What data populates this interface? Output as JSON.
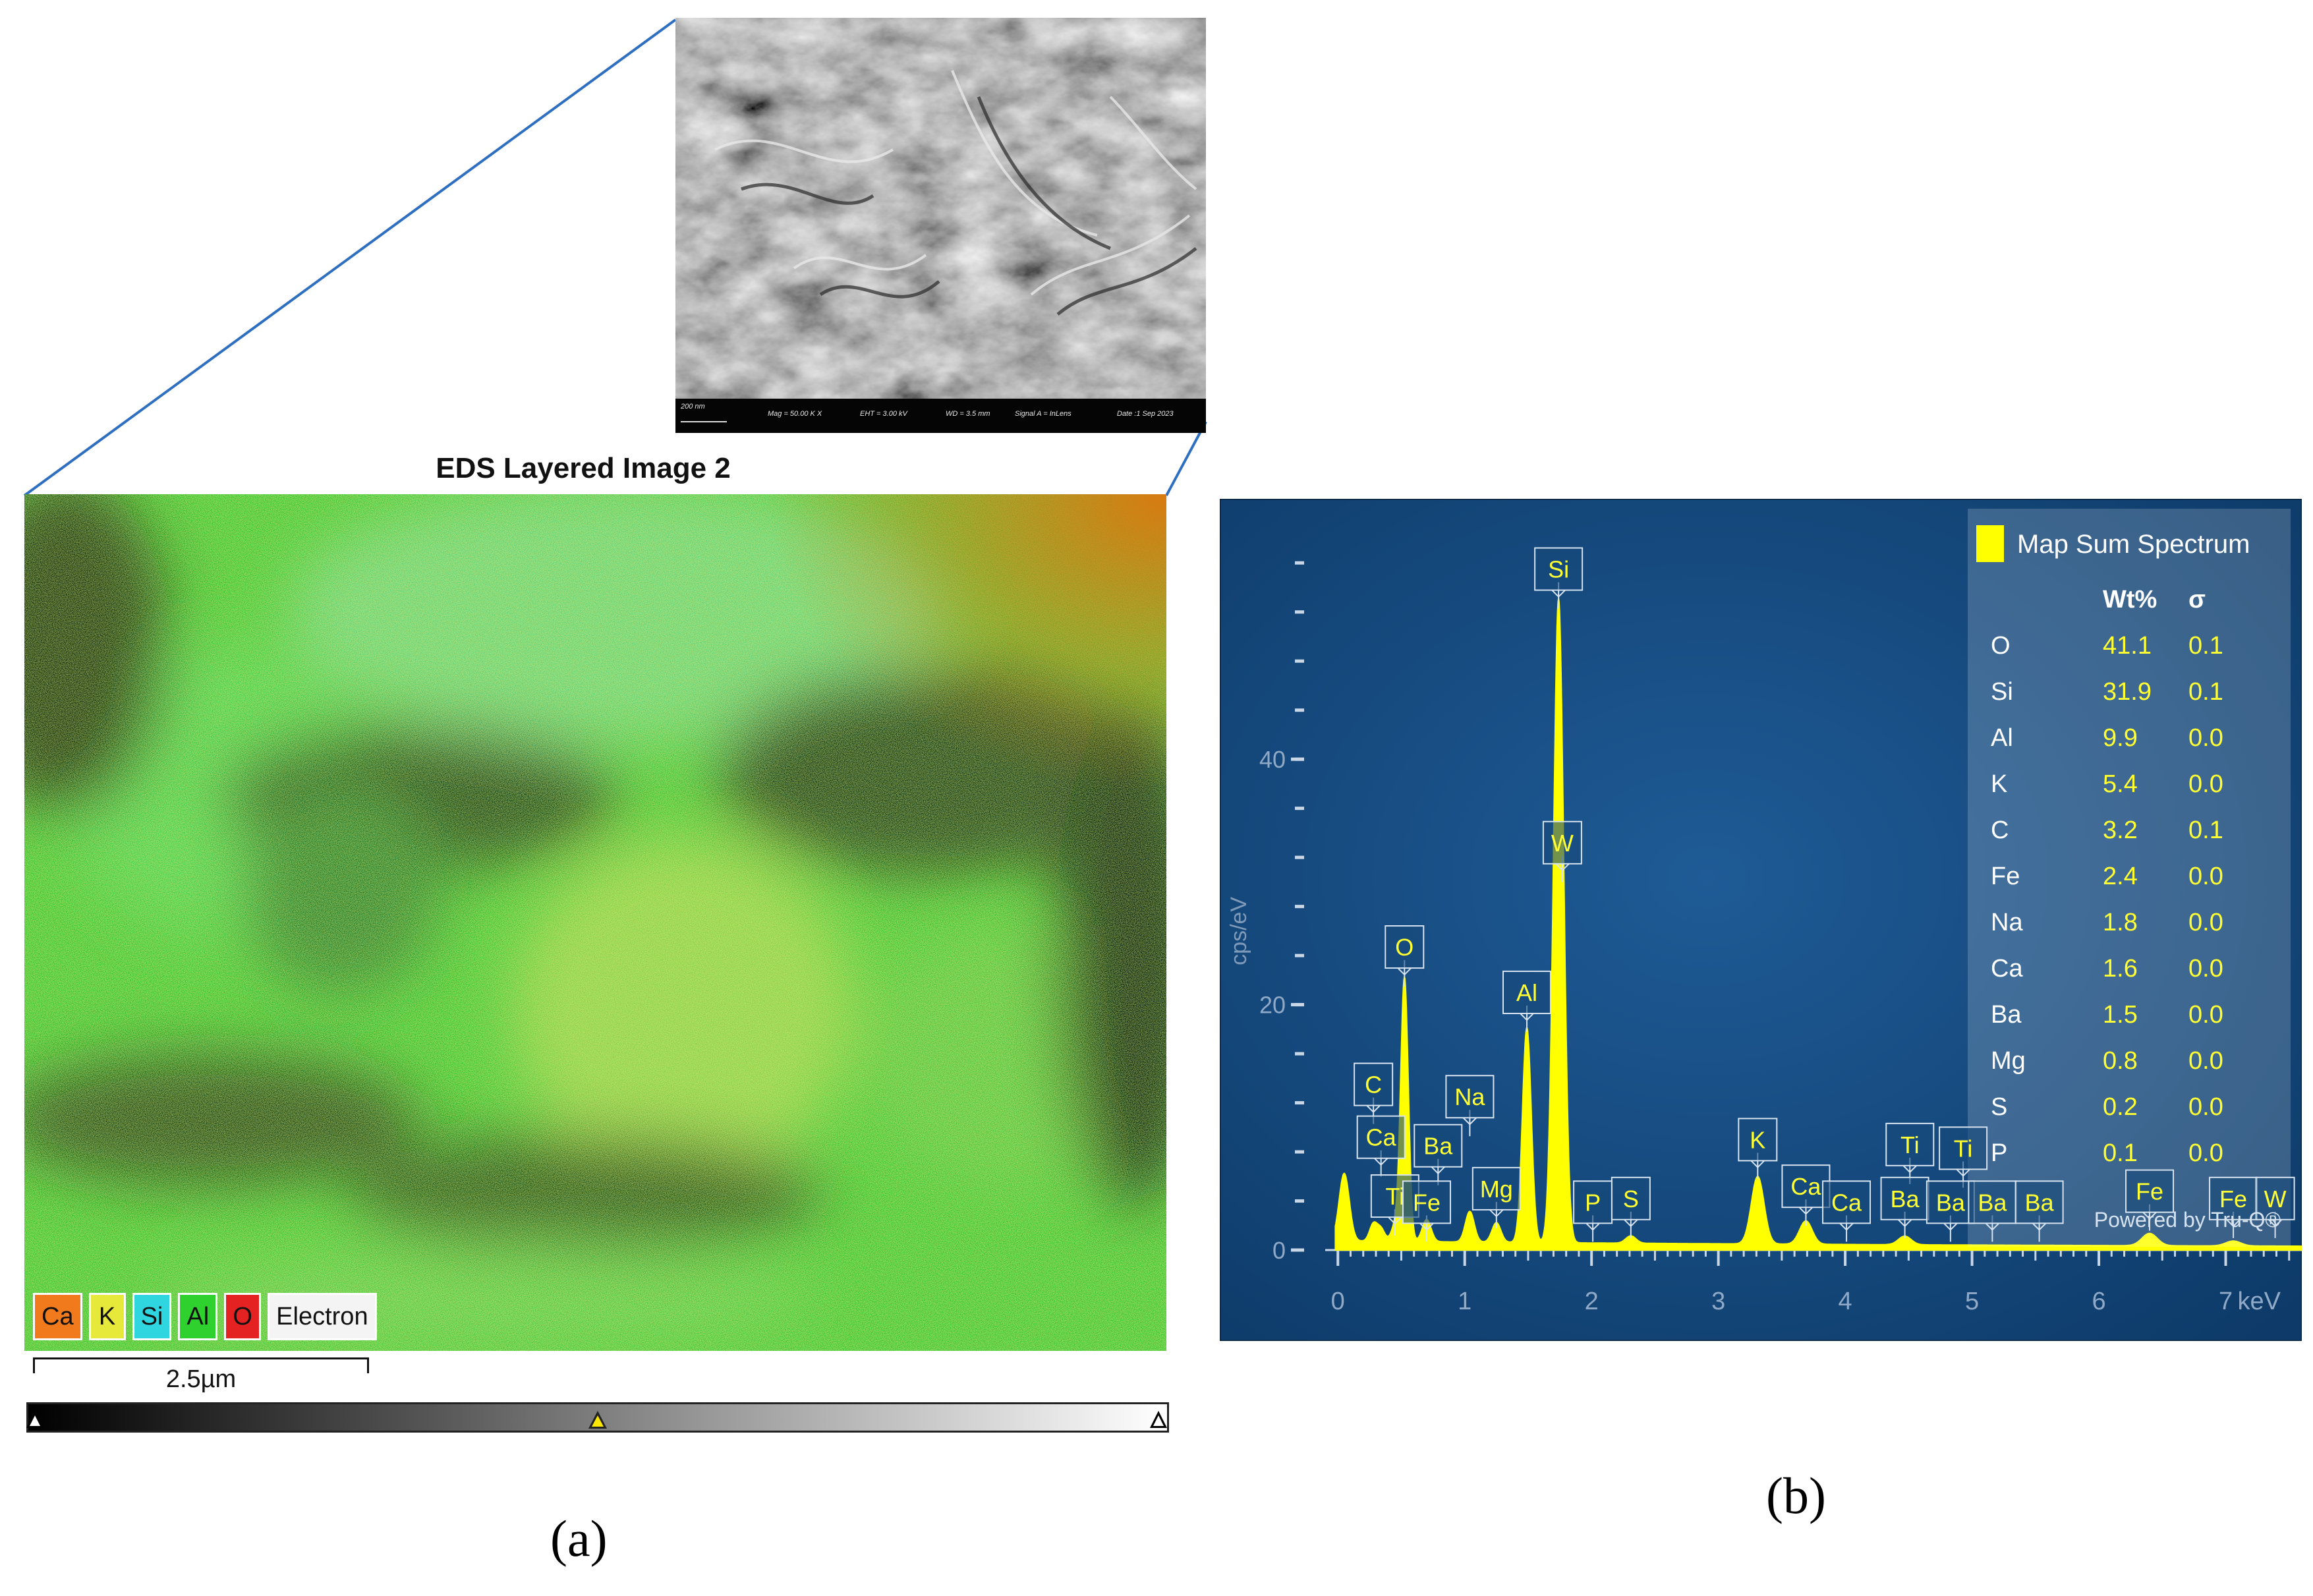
{
  "panel_a": {
    "label": "(a)",
    "title": "EDS Layered Image 2",
    "sem_info": {
      "scale": "200 nm",
      "mag": "Mag =  50.00 K X",
      "eht": "EHT =  3.00 kV",
      "wd": "WD =  3.5 mm",
      "signal": "Signal A = InLens",
      "date": "Date :1 Sep 2023"
    },
    "legend": [
      {
        "label": "Ca",
        "color": "#f07a1c"
      },
      {
        "label": "K",
        "color": "#e6e83a"
      },
      {
        "label": "Si",
        "color": "#2fd6e0"
      },
      {
        "label": "Al",
        "color": "#2fd12f"
      },
      {
        "label": "O",
        "color": "#e52222"
      },
      {
        "label": "Electron",
        "color": "#f4f4f4"
      }
    ],
    "scale_bar": "2.5µm"
  },
  "panel_b": {
    "label": "(b)",
    "chart_data": {
      "type": "line",
      "title": "",
      "xlabel": "keV",
      "ylabel": "cps/eV",
      "xlim": [
        -0.1,
        7.6
      ],
      "ylim": [
        0,
        58
      ],
      "x_ticks": [
        "0",
        "1",
        "2",
        "3",
        "4",
        "5",
        "6",
        "7"
      ],
      "y_ticks": [
        "0",
        "20",
        "40"
      ],
      "grid": false,
      "series": [
        {
          "name": "Map Sum Spectrum",
          "color": "#ffff00",
          "peaks": [
            {
              "keV": 0.05,
              "height": 5.5,
              "width": 0.04
            },
            {
              "keV": 0.28,
              "height": 1.4,
              "width": 0.03
            },
            {
              "keV": 0.34,
              "height": 1.0,
              "width": 0.03
            },
            {
              "keV": 0.45,
              "height": 1.2,
              "width": 0.03
            },
            {
              "keV": 0.525,
              "height": 21.5,
              "width": 0.03
            },
            {
              "keV": 0.7,
              "height": 1.8,
              "width": 0.035
            },
            {
              "keV": 1.04,
              "height": 2.5,
              "width": 0.035
            },
            {
              "keV": 1.25,
              "height": 1.6,
              "width": 0.035
            },
            {
              "keV": 1.49,
              "height": 17.5,
              "width": 0.035
            },
            {
              "keV": 1.74,
              "height": 52.5,
              "width": 0.04
            },
            {
              "keV": 2.31,
              "height": 0.6,
              "width": 0.04
            },
            {
              "keV": 3.31,
              "height": 5.5,
              "width": 0.05
            },
            {
              "keV": 3.69,
              "height": 1.9,
              "width": 0.05
            },
            {
              "keV": 4.47,
              "height": 0.7,
              "width": 0.05
            },
            {
              "keV": 6.4,
              "height": 1.0,
              "width": 0.06
            },
            {
              "keV": 7.06,
              "height": 0.4,
              "width": 0.06
            }
          ],
          "baseline": 0.6
        }
      ],
      "peak_labels": [
        {
          "label": "Si",
          "keV": 1.74,
          "y": 55.5
        },
        {
          "label": "W",
          "keV": 1.77,
          "y": 33.2
        },
        {
          "label": "O",
          "keV": 0.525,
          "y": 24.7
        },
        {
          "label": "Al",
          "keV": 1.49,
          "y": 21.0
        },
        {
          "label": "C",
          "keV": 0.28,
          "y": 13.5
        },
        {
          "label": "Na",
          "keV": 1.04,
          "y": 12.5
        },
        {
          "label": "Ca",
          "keV": 0.34,
          "y": 9.2
        },
        {
          "label": "Ba",
          "keV": 0.79,
          "y": 8.5
        },
        {
          "label": "Ti",
          "keV": 0.45,
          "y": 4.4
        },
        {
          "label": "Fe",
          "keV": 0.7,
          "y": 3.9
        },
        {
          "label": "Mg",
          "keV": 1.25,
          "y": 5.0
        },
        {
          "label": "P",
          "keV": 2.01,
          "y": 3.9
        },
        {
          "label": "S",
          "keV": 2.31,
          "y": 4.2
        },
        {
          "label": "K",
          "keV": 3.31,
          "y": 9.0
        },
        {
          "label": "Ca",
          "keV": 3.69,
          "y": 5.2
        },
        {
          "label": "Ca",
          "keV": 4.01,
          "y": 3.9
        },
        {
          "label": "Ti",
          "keV": 4.51,
          "y": 8.6
        },
        {
          "label": "Ti",
          "keV": 4.93,
          "y": 8.3
        },
        {
          "label": "Ba",
          "keV": 4.47,
          "y": 4.2
        },
        {
          "label": "Ba",
          "keV": 4.83,
          "y": 3.9
        },
        {
          "label": "Ba",
          "keV": 5.16,
          "y": 3.9
        },
        {
          "label": "Ba",
          "keV": 5.53,
          "y": 3.9
        },
        {
          "label": "Fe",
          "keV": 6.4,
          "y": 4.8
        },
        {
          "label": "Fe",
          "keV": 7.06,
          "y": 4.2
        },
        {
          "label": "W",
          "keV": 7.39,
          "y": 4.2
        }
      ],
      "legend": {
        "title": "Map Sum Spectrum",
        "position": "top-right"
      },
      "table": {
        "headers": [
          "",
          "Wt%",
          "σ"
        ],
        "rows": [
          [
            "O",
            "41.1",
            "0.1"
          ],
          [
            "Si",
            "31.9",
            "0.1"
          ],
          [
            "Al",
            "9.9",
            "0.0"
          ],
          [
            "K",
            "5.4",
            "0.0"
          ],
          [
            "C",
            "3.2",
            "0.1"
          ],
          [
            "Fe",
            "2.4",
            "0.0"
          ],
          [
            "Na",
            "1.8",
            "0.0"
          ],
          [
            "Ca",
            "1.6",
            "0.0"
          ],
          [
            "Ba",
            "1.5",
            "0.0"
          ],
          [
            "Mg",
            "0.8",
            "0.0"
          ],
          [
            "S",
            "0.2",
            "0.0"
          ],
          [
            "P",
            "0.1",
            "0.0"
          ]
        ]
      },
      "watermark": "Powered by Tru-Q®"
    }
  }
}
